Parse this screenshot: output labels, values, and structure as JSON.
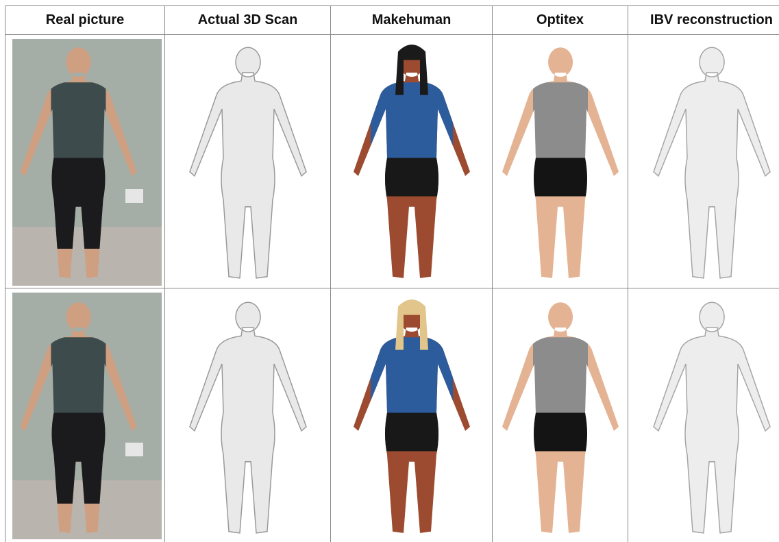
{
  "table": {
    "header": [
      "Real picture",
      "Actual 3D Scan",
      "Makehuman",
      "Optitex",
      "IBV reconstruction"
    ]
  }
}
